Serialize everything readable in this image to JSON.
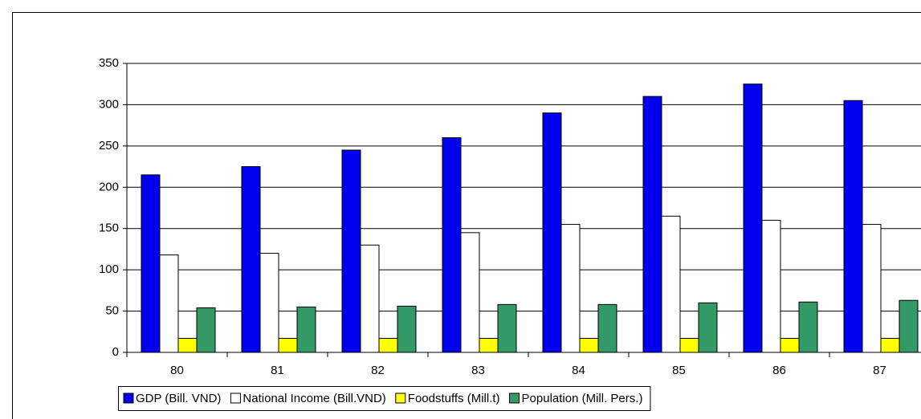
{
  "chart_data": {
    "type": "bar",
    "categories": [
      "80",
      "81",
      "82",
      "83",
      "84",
      "85",
      "86",
      "87"
    ],
    "series": [
      {
        "name": "GDP (Bill. VND)",
        "color": "#0000ee",
        "values": [
          215,
          225,
          245,
          260,
          290,
          310,
          325,
          305
        ]
      },
      {
        "name": "National Income (Bill.VND)",
        "color": "#ffffff",
        "values": [
          118,
          120,
          130,
          145,
          155,
          165,
          160,
          155
        ]
      },
      {
        "name": "Foodstuffs (Mill.t)",
        "color": "#ffff00",
        "values": [
          17,
          17,
          17,
          17,
          17,
          17,
          17,
          17
        ]
      },
      {
        "name": "Population (Mill. Pers.)",
        "color": "#339966",
        "values": [
          54,
          55,
          56,
          58,
          58,
          60,
          61,
          63
        ]
      }
    ],
    "ylim": [
      0,
      350
    ],
    "yticks": [
      0,
      50,
      100,
      150,
      200,
      250,
      300,
      350
    ],
    "grid": true,
    "legend": "bottom"
  }
}
